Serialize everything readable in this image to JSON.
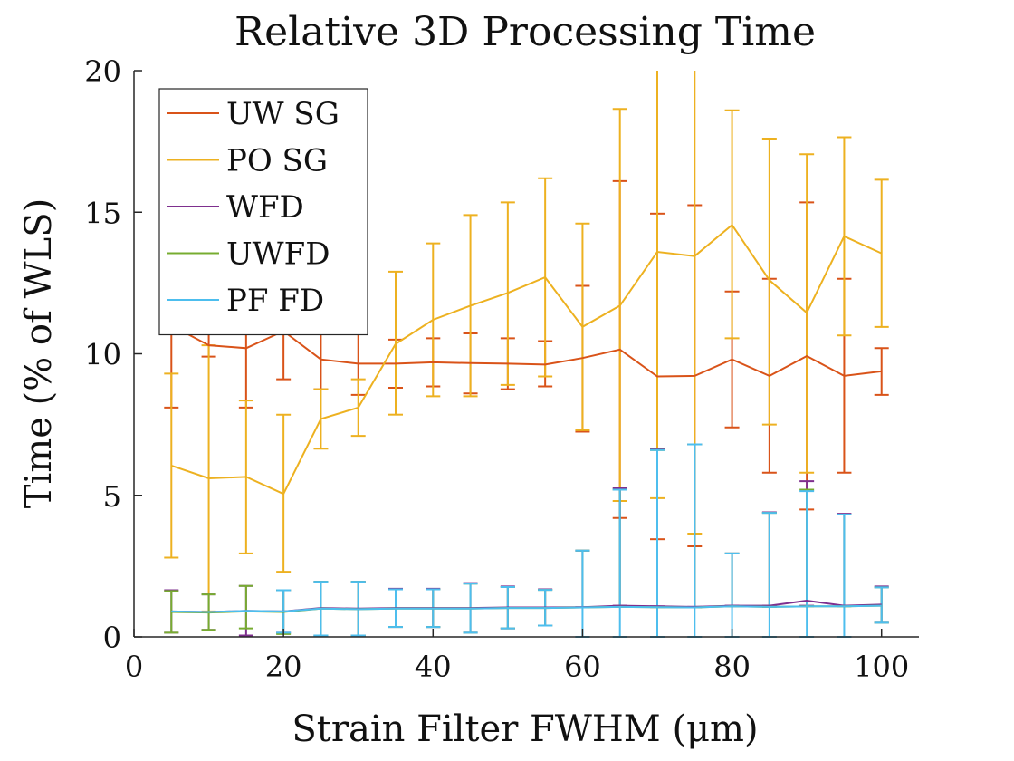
{
  "chart_data": {
    "type": "line",
    "title": "Relative 3D Processing Time",
    "xlabel": "Strain Filter FWHM (μm)",
    "ylabel": "Time (% of WLS)",
    "xlim": [
      0,
      105
    ],
    "ylim": [
      0,
      20
    ],
    "xticks": [
      0,
      20,
      40,
      60,
      80,
      100
    ],
    "yticks": [
      0,
      5,
      10,
      15,
      20
    ],
    "grid": false,
    "legend_position": "top-left",
    "x": [
      5,
      10,
      15,
      20,
      25,
      30,
      35,
      40,
      45,
      50,
      55,
      60,
      65,
      70,
      75,
      80,
      85,
      90,
      95,
      100
    ],
    "series": [
      {
        "name": "UW SG",
        "color": "#D95319",
        "values": [
          11.0,
          10.3,
          10.2,
          10.8,
          9.8,
          9.65,
          9.65,
          9.7,
          9.67,
          9.65,
          9.62,
          9.85,
          10.15,
          9.2,
          9.22,
          9.8,
          9.22,
          9.92,
          9.22,
          9.38
        ],
        "lower": [
          8.1,
          9.9,
          8.1,
          9.1,
          8.75,
          8.55,
          8.8,
          8.85,
          8.6,
          8.75,
          8.85,
          7.25,
          4.2,
          3.45,
          3.2,
          7.4,
          5.8,
          4.5,
          5.8,
          8.55
        ],
        "upper": [
          13.9,
          10.7,
          12.3,
          12.5,
          10.85,
          10.75,
          10.5,
          10.55,
          10.72,
          10.55,
          10.45,
          12.4,
          16.1,
          14.95,
          15.25,
          12.2,
          12.65,
          15.35,
          12.65,
          10.2
        ]
      },
      {
        "name": "PO SG",
        "color": "#EDB120",
        "values": [
          6.05,
          5.6,
          5.65,
          5.05,
          7.7,
          8.1,
          10.35,
          11.2,
          11.7,
          12.15,
          12.7,
          10.95,
          11.7,
          13.6,
          13.45,
          14.55,
          12.6,
          11.45,
          14.15,
          13.55
        ],
        "lower": [
          2.8,
          0.9,
          2.95,
          2.3,
          6.65,
          7.1,
          7.85,
          8.5,
          8.5,
          8.9,
          9.2,
          7.3,
          4.8,
          4.9,
          3.65,
          10.55,
          7.5,
          5.8,
          10.65,
          10.95
        ],
        "upper": [
          9.3,
          10.3,
          8.35,
          7.85,
          8.75,
          9.1,
          12.9,
          13.9,
          14.9,
          15.35,
          16.2,
          14.6,
          18.65,
          22.0,
          22.0,
          18.6,
          17.6,
          17.05,
          17.65,
          16.15
        ]
      },
      {
        "name": "WFD",
        "color": "#7E2F8E",
        "values": [
          0.9,
          0.88,
          0.92,
          0.9,
          1.02,
          1.0,
          1.02,
          1.02,
          1.02,
          1.04,
          1.04,
          1.05,
          1.1,
          1.08,
          1.06,
          1.1,
          1.1,
          1.28,
          1.1,
          1.14
        ],
        "lower": [
          0.15,
          0.25,
          0.05,
          0.15,
          0.05,
          0.05,
          0.35,
          0.35,
          0.15,
          0.3,
          0.4,
          1.05,
          1.1,
          1.08,
          1.06,
          1.1,
          1.1,
          1.1,
          1.1,
          0.5
        ],
        "upper": [
          1.65,
          1.5,
          1.8,
          1.65,
          1.95,
          1.95,
          1.7,
          1.7,
          1.9,
          1.78,
          1.68,
          3.05,
          5.25,
          6.65,
          6.8,
          2.95,
          4.4,
          5.5,
          4.35,
          1.78
        ]
      },
      {
        "name": "UWFD",
        "color": "#77AC30",
        "values": [
          0.88,
          0.86,
          0.9,
          0.88,
          1.0,
          0.98,
          1.0,
          1.0,
          1.0,
          1.02,
          1.02,
          1.04,
          1.06,
          1.05,
          1.04,
          1.08,
          1.06,
          1.08,
          1.08,
          1.1
        ],
        "lower": [
          0.15,
          0.25,
          0.3,
          0.1,
          0.05,
          0.05,
          0.35,
          0.35,
          0.15,
          0.3,
          0.4,
          1.04,
          1.06,
          1.05,
          1.04,
          1.08,
          1.06,
          1.08,
          1.08,
          0.5
        ],
        "upper": [
          1.62,
          1.5,
          1.8,
          1.65,
          1.95,
          1.95,
          1.68,
          1.68,
          1.88,
          1.76,
          1.66,
          3.05,
          5.2,
          6.6,
          6.8,
          2.95,
          4.38,
          5.2,
          4.32,
          1.75
        ]
      },
      {
        "name": "PF FD",
        "color": "#4DBEEE",
        "values": [
          0.9,
          0.88,
          0.92,
          0.9,
          1.0,
          0.98,
          1.0,
          1.0,
          1.0,
          1.02,
          1.02,
          1.04,
          1.06,
          1.05,
          1.04,
          1.08,
          1.06,
          1.08,
          1.08,
          1.1
        ],
        "lower": [
          0.9,
          0.88,
          0.92,
          0.15,
          0.05,
          0.05,
          0.35,
          0.35,
          0.15,
          0.3,
          0.4,
          0.0,
          0.0,
          0.0,
          0.0,
          0.0,
          0.0,
          0.0,
          0.0,
          0.5
        ],
        "upper": [
          0.9,
          0.88,
          0.92,
          1.65,
          1.95,
          1.95,
          1.68,
          1.68,
          1.88,
          1.76,
          1.66,
          3.05,
          5.2,
          6.6,
          6.8,
          2.95,
          4.38,
          5.15,
          4.32,
          1.75
        ]
      }
    ]
  }
}
